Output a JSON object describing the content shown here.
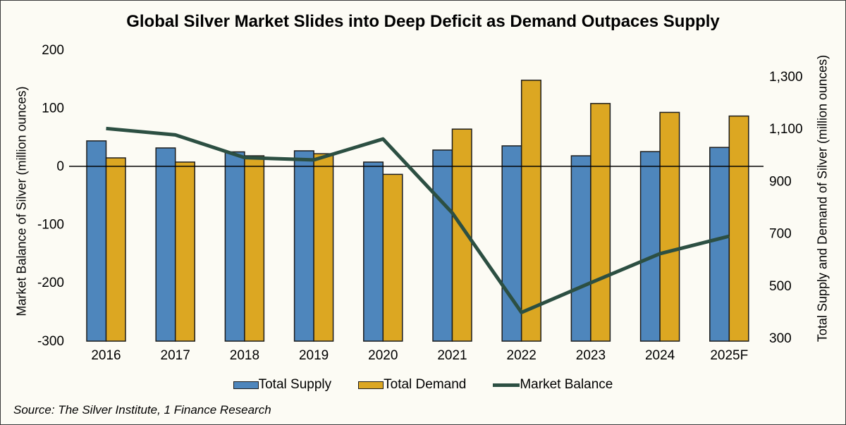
{
  "title": "Global Silver Market Slides into Deep Deficit as Demand Outpaces Supply",
  "source_note": "Source: The Silver Institute, 1 Finance Research",
  "left_axis": {
    "title": "Market Balance of Silver (million ounces)",
    "tick_labels": [
      "200",
      "100",
      "0",
      "-100",
      "-200",
      "-300"
    ],
    "tick_values": [
      200,
      100,
      0,
      -100,
      -200,
      -300
    ]
  },
  "right_axis": {
    "title": "Total Supply and Demand of Silver (million ounces)",
    "tick_labels": [
      "1,300",
      "1,100",
      "900",
      "700",
      "500",
      "300"
    ],
    "tick_values": [
      1300,
      1100,
      900,
      700,
      500,
      300
    ]
  },
  "chart_data": {
    "type": "combo",
    "categories": [
      "2016",
      "2017",
      "2018",
      "2019",
      "2020",
      "2021",
      "2022",
      "2023",
      "2024",
      "2025F"
    ],
    "series": [
      {
        "name": "Total Supply",
        "type": "bar",
        "axis": "right",
        "color": "#4E86BC",
        "values": [
          1055,
          1028,
          1013,
          1017,
          974,
          1020,
          1036,
          998,
          1014,
          1030
        ]
      },
      {
        "name": "Total Demand",
        "type": "bar",
        "axis": "right",
        "color": "#DCA722",
        "values": [
          990,
          974,
          998,
          1006,
          927,
          1100,
          1287,
          1198,
          1164,
          1150
        ]
      },
      {
        "name": "Market Balance",
        "type": "line",
        "axis": "left",
        "color": "#2C4F42",
        "values": [
          65,
          54,
          15,
          11,
          47,
          -80,
          -251,
          -200,
          -150,
          -120
        ]
      }
    ],
    "left_axis_range": [
      -300,
      200
    ],
    "right_axis_range": [
      300,
      1300
    ],
    "grid": false,
    "legend_position": "bottom",
    "zero_line": true,
    "units": "million ounces"
  },
  "colors": {
    "background": "#FCFBF4",
    "supply_bar": "#4E86BC",
    "demand_bar": "#DCA722",
    "balance_line": "#2C4F42",
    "bar_border": "#1C1C1C",
    "zero_line": "#000000",
    "text": "#000000"
  }
}
